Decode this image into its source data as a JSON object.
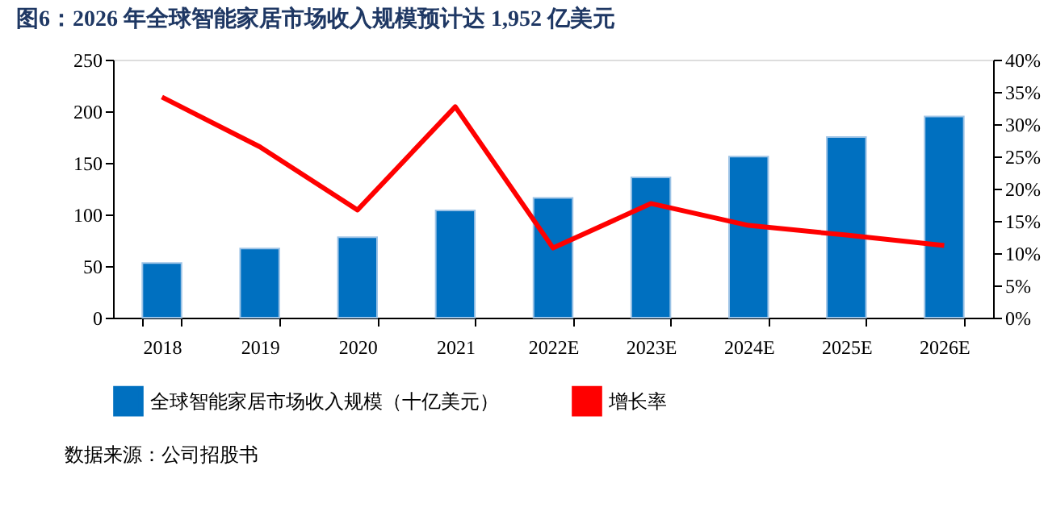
{
  "chart_data": {
    "type": "bar",
    "title": "图6：2026 年全球智能家居市场收入规模预计达 1,952 亿美元",
    "categories": [
      "2018",
      "2019",
      "2020",
      "2021",
      "2022E",
      "2023E",
      "2024E",
      "2025E",
      "2026E"
    ],
    "series": [
      {
        "name": "全球智能家居市场收入规模（十亿美元）",
        "color": "#0070c0",
        "values": [
          53,
          67,
          78,
          104,
          116,
          136,
          156,
          175,
          195
        ]
      },
      {
        "name": "增长率",
        "color": "#ff0000",
        "type": "line",
        "axis": "y2",
        "values": [
          34.2,
          26.5,
          16.7,
          32.7,
          10.8,
          17.7,
          14.3,
          12.8,
          11.2
        ]
      }
    ],
    "ylim": [
      0,
      250
    ],
    "yticks": [
      0,
      50,
      100,
      150,
      200,
      250
    ],
    "y2lim": [
      0,
      40
    ],
    "y2ticks": [
      {
        "value": 0,
        "label": "0%"
      },
      {
        "value": 5,
        "label": "5%"
      },
      {
        "value": 10,
        "label": "10%"
      },
      {
        "value": 15,
        "label": "15%"
      },
      {
        "value": 20,
        "label": "20%"
      },
      {
        "value": 25,
        "label": "25%"
      },
      {
        "value": 30,
        "label": "30%"
      },
      {
        "value": 35,
        "label": "35%"
      },
      {
        "value": 40,
        "label": "40%"
      }
    ],
    "legend": "bottom",
    "grid": false,
    "marker": "none",
    "line_style": "solid",
    "annotations": [
      "数据来源：公司招股书"
    ]
  }
}
